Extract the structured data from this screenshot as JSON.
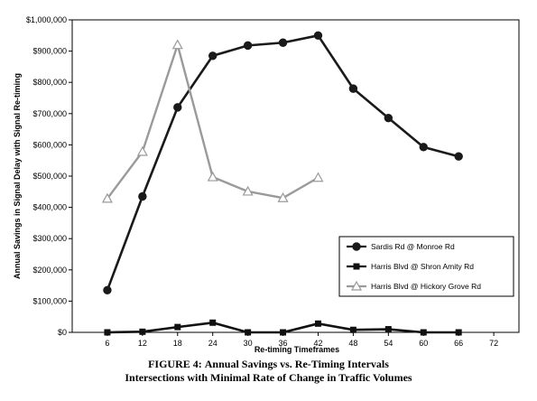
{
  "chart_data": {
    "type": "line",
    "title": "",
    "xlabel": "Re-timing Timeframes",
    "ylabel": "Annual Savings in Signal Delay with Signal Re-timing",
    "x": [
      6,
      12,
      18,
      24,
      30,
      36,
      42,
      48,
      54,
      60,
      66,
      72
    ],
    "xticks": [
      "6",
      "12",
      "18",
      "24",
      "30",
      "36",
      "42",
      "48",
      "54",
      "60",
      "66",
      "72"
    ],
    "ylim": [
      0,
      1000000
    ],
    "yticks": [
      "$0",
      "$100,000",
      "$200,000",
      "$300,000",
      "$400,000",
      "$500,000",
      "$600,000",
      "$700,000",
      "$800,000",
      "$900,000",
      "$1,000,000"
    ],
    "grid": false,
    "legend_position": "lower-right",
    "series": [
      {
        "name": "Sardis Rd @ Monroe Rd",
        "marker": "circle",
        "color": "#1a1a1a",
        "x": [
          6,
          12,
          18,
          24,
          30,
          36,
          42,
          48,
          54,
          60,
          66
        ],
        "values": [
          135000,
          435000,
          720000,
          885000,
          918000,
          927000,
          950000,
          780000,
          686000,
          593000,
          563000
        ]
      },
      {
        "name": "Harris Blvd @ Shron Amity Rd",
        "marker": "square",
        "color": "#111111",
        "x": [
          6,
          12,
          18,
          24,
          30,
          36,
          42,
          48,
          54,
          60,
          66
        ],
        "values": [
          0,
          2000,
          17000,
          31000,
          0,
          0,
          28000,
          8000,
          10000,
          0,
          0
        ]
      },
      {
        "name": "Harris Blvd @ Hickory Grove Rd",
        "marker": "triangle",
        "color": "#9a9a9a",
        "x": [
          6,
          12,
          18,
          24,
          30,
          36,
          42
        ],
        "values": [
          428000,
          578000,
          920000,
          497000,
          451000,
          430000,
          495000
        ]
      }
    ]
  },
  "caption": {
    "figure_label": "FIGURE 4:",
    "line1": "Annual Savings vs. Re-Timing Intervals",
    "line2": "Intersections with Minimal Rate of Change in Traffic Volumes"
  },
  "colors": {
    "axis": "#000000",
    "legend_border": "#000000"
  }
}
